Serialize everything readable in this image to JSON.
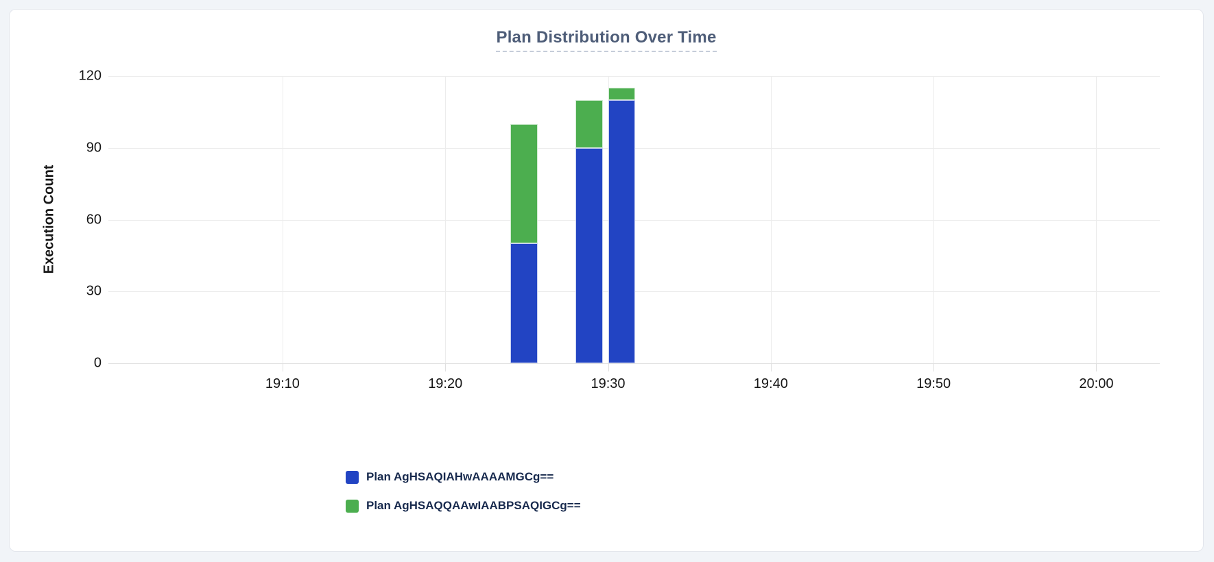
{
  "card": {
    "background": "#ffffff",
    "page_background": "#f1f4f8"
  },
  "chart_data": {
    "type": "bar",
    "stacked": true,
    "title": "Plan Distribution Over Time",
    "xlabel": "",
    "ylabel": "Execution Count",
    "ylim": [
      0,
      120
    ],
    "yticks": [
      0,
      30,
      60,
      90,
      120
    ],
    "xticks": [
      {
        "label": "19:10",
        "minute": 10
      },
      {
        "label": "19:20",
        "minute": 20
      },
      {
        "label": "19:30",
        "minute": 30
      },
      {
        "label": "19:40",
        "minute": 40
      },
      {
        "label": "19:50",
        "minute": 50
      },
      {
        "label": "20:00",
        "minute": 60
      }
    ],
    "x_domain_minutes_after_1900": [
      -0.7,
      63.9
    ],
    "grid": true,
    "legend_position": "bottom-left",
    "bars": [
      {
        "time": "19:24",
        "minute": 24,
        "width_minutes": 1.67
      },
      {
        "time": "19:28",
        "minute": 28,
        "width_minutes": 1.67
      },
      {
        "time": "19:30",
        "minute": 30,
        "width_minutes": 1.67
      }
    ],
    "series": [
      {
        "name": "Plan AgHSAQIAHwAAAAMGCg==",
        "color": "#2244c3",
        "values": [
          50,
          90,
          110
        ]
      },
      {
        "name": "Plan AgHSAQQAAwIAABPSAQIGCg==",
        "color": "#4cae4f",
        "values": [
          50,
          20,
          5
        ]
      }
    ],
    "totals": [
      100,
      110,
      115
    ]
  }
}
